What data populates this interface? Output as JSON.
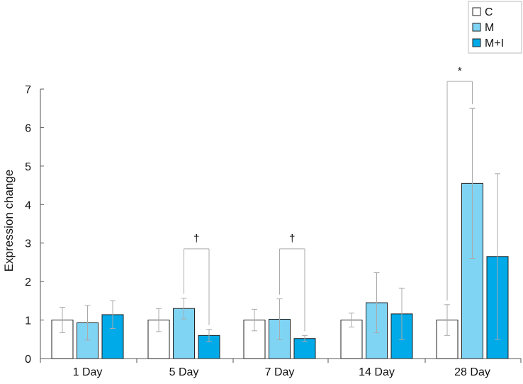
{
  "chart_data": {
    "type": "bar",
    "title": "",
    "xlabel": "",
    "ylabel": "Expression change",
    "ylim": [
      0,
      7
    ],
    "yticks": [
      0,
      1,
      2,
      3,
      4,
      5,
      6,
      7
    ],
    "categories": [
      "1 Day",
      "5 Day",
      "7 Day",
      "14 Day",
      "28 Day"
    ],
    "series": [
      {
        "name": "C",
        "color": "#ffffff",
        "values": [
          1.0,
          1.0,
          1.0,
          1.0,
          1.0
        ],
        "err_up": [
          0.33,
          0.3,
          0.28,
          0.18,
          0.4
        ],
        "err_down": [
          0.33,
          0.3,
          0.28,
          0.18,
          0.4
        ]
      },
      {
        "name": "M",
        "color": "#7fd4f4",
        "values": [
          0.93,
          1.3,
          1.02,
          1.45,
          4.55
        ],
        "err_up": [
          0.45,
          0.27,
          0.53,
          0.78,
          1.95
        ],
        "err_down": [
          0.45,
          0.27,
          0.53,
          0.78,
          1.95
        ]
      },
      {
        "name": "M+I",
        "color": "#00aae8",
        "values": [
          1.14,
          0.6,
          0.52,
          1.16,
          2.65
        ],
        "err_up": [
          0.36,
          0.16,
          0.08,
          0.67,
          2.15
        ],
        "err_down": [
          0.36,
          0.16,
          0.08,
          0.67,
          2.15
        ]
      }
    ],
    "legend": {
      "position": "top-right"
    },
    "grid": false,
    "annotations": [
      {
        "label": "†",
        "category": "5 Day",
        "from_series": "M",
        "to_series": "M+I",
        "level": 2.85
      },
      {
        "label": "†",
        "category": "7 Day",
        "from_series": "M",
        "to_series": "M+I",
        "level": 2.85
      },
      {
        "label": "*",
        "category": "28 Day",
        "from_series": "C",
        "to_series": "M",
        "level": 7.2
      }
    ]
  }
}
